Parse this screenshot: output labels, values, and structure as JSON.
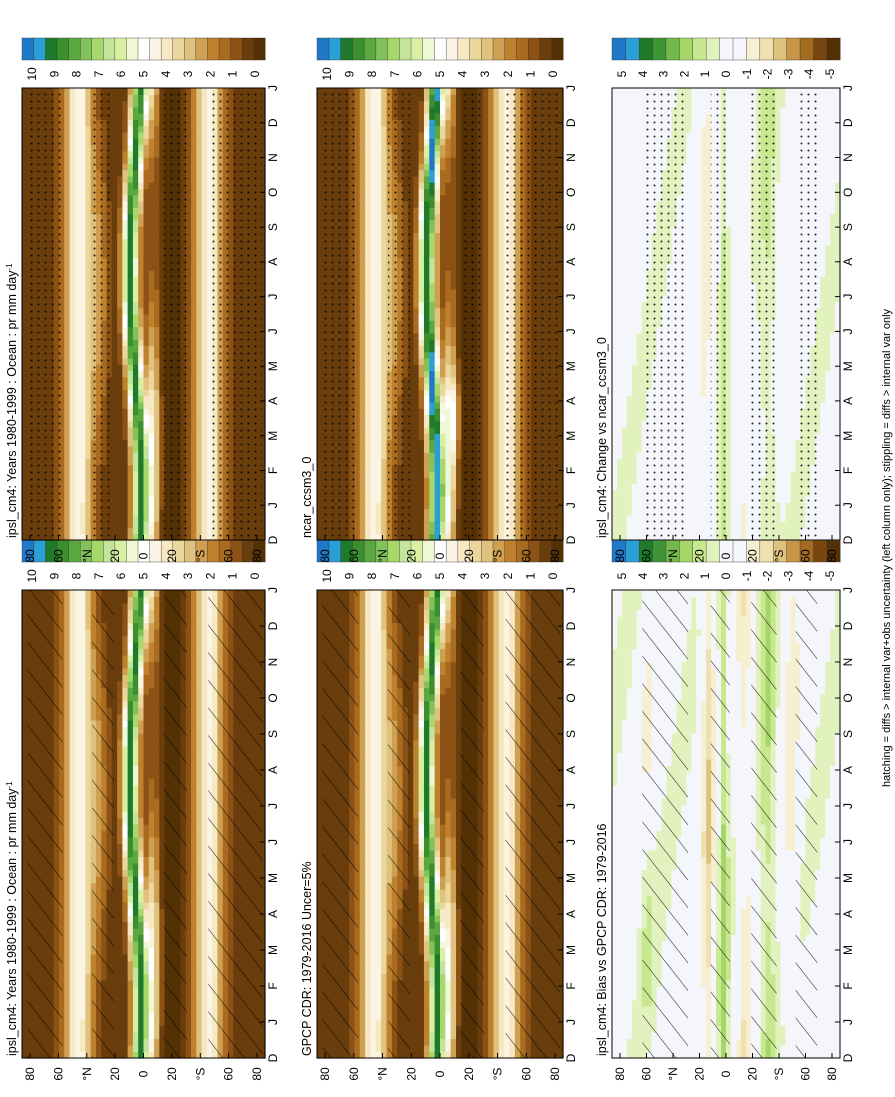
{
  "caption": "hatching = diffs > internal var+obs uncertainty (left column only); stippling = diffs > internal var only",
  "chart_data": [
    {
      "id": "model-left",
      "type": "heatmap",
      "title": "ipsl_cm4: Years 1980-1999 : Ocean : pr mm day",
      "title_superscript": "-1",
      "x_ticks": [
        "D",
        "J",
        "F",
        "M",
        "A",
        "M",
        "J",
        "J",
        "A",
        "S",
        "O",
        "N",
        "D",
        "J"
      ],
      "y_ticks": [
        "80",
        "60",
        "°N",
        "20",
        "0",
        "20",
        "°S",
        "60",
        "80"
      ],
      "colorbar_labels": [
        "10",
        "9",
        "8",
        "7",
        "6",
        "5",
        "4",
        "3",
        "2",
        "1",
        "0"
      ],
      "overlay": "hatching",
      "field": "climatology"
    },
    {
      "id": "model-right",
      "type": "heatmap",
      "title": "ipsl_cm4: Years 1980-1999 : Ocean : pr mm day",
      "title_superscript": "-1",
      "x_ticks": [
        "D",
        "J",
        "F",
        "M",
        "A",
        "M",
        "J",
        "J",
        "A",
        "S",
        "O",
        "N",
        "D",
        "J"
      ],
      "y_ticks": [
        "80",
        "60",
        "°N",
        "20",
        "0",
        "20",
        "°S",
        "60",
        "80"
      ],
      "colorbar_labels": [
        "10",
        "9",
        "8",
        "7",
        "6",
        "5",
        "4",
        "3",
        "2",
        "1",
        "0"
      ],
      "overlay": "stippling",
      "field": "climatology"
    },
    {
      "id": "obs-left",
      "type": "heatmap",
      "title": "GPCP CDR: 1979-2016 Uncer=5%",
      "title_superscript": "",
      "x_ticks": [
        "D",
        "J",
        "F",
        "M",
        "A",
        "M",
        "J",
        "J",
        "A",
        "S",
        "O",
        "N",
        "D",
        "J"
      ],
      "y_ticks": [
        "80",
        "60",
        "°N",
        "20",
        "0",
        "20",
        "°S",
        "60",
        "80"
      ],
      "colorbar_labels": [
        "10",
        "9",
        "8",
        "7",
        "6",
        "5",
        "4",
        "3",
        "2",
        "1",
        "0"
      ],
      "overlay": "hatching",
      "field": "climatology"
    },
    {
      "id": "obs-right",
      "type": "heatmap",
      "title": "ncar_ccsm3_0",
      "title_superscript": "",
      "x_ticks": [
        "D",
        "J",
        "F",
        "M",
        "A",
        "M",
        "J",
        "J",
        "A",
        "S",
        "O",
        "N",
        "D",
        "J"
      ],
      "y_ticks": [
        "80",
        "60",
        "°N",
        "20",
        "0",
        "20",
        "°S",
        "60",
        "80"
      ],
      "colorbar_labels": [
        "10",
        "9",
        "8",
        "7",
        "6",
        "5",
        "4",
        "3",
        "2",
        "1",
        "0"
      ],
      "overlay": "stippling",
      "field": "climatology_alt"
    },
    {
      "id": "diff-left",
      "type": "heatmap",
      "title": "ipsl_cm4: Bias vs GPCP CDR: 1979-2016",
      "title_superscript": "",
      "x_ticks": [
        "D",
        "J",
        "F",
        "M",
        "A",
        "M",
        "J",
        "J",
        "A",
        "S",
        "O",
        "N",
        "D",
        "J"
      ],
      "y_ticks": [
        "80",
        "60",
        "°N",
        "20",
        "0",
        "20",
        "°S",
        "60",
        "80"
      ],
      "colorbar_labels": [
        "5",
        "4",
        "3",
        "2",
        "1",
        "0",
        "-1",
        "-2",
        "-3",
        "-4",
        "-5"
      ],
      "overlay": "hatching",
      "field": "bias"
    },
    {
      "id": "diff-right",
      "type": "heatmap",
      "title": "ipsl_cm4: Change vs ncar_ccsm3_0",
      "title_superscript": "",
      "x_ticks": [
        "D",
        "J",
        "F",
        "M",
        "A",
        "M",
        "J",
        "J",
        "A",
        "S",
        "O",
        "N",
        "D",
        "J"
      ],
      "y_ticks": [
        "80",
        "60",
        "°N",
        "20",
        "0",
        "20",
        "°S",
        "60",
        "80"
      ],
      "colorbar_labels": [
        "5",
        "4",
        "3",
        "2",
        "1",
        "0",
        "-1",
        "-2",
        "-3",
        "-4",
        "-5"
      ],
      "overlay": "stippling",
      "field": "change"
    }
  ],
  "colors": {
    "climatology": [
      "#543005",
      "#6a3d0c",
      "#8c5114",
      "#a86b20",
      "#bf812d",
      "#d0a052",
      "#dfc27d",
      "#ebd69c",
      "#f6e8c3",
      "#fbf4e3",
      "#ffffff",
      "#eef7d6",
      "#d9f0a3",
      "#c2e59b",
      "#a6d96a",
      "#82c25a",
      "#5aa83f",
      "#3b8f2f",
      "#1f7a2b",
      "#2a9fd6",
      "#1f78c8"
    ],
    "diff": [
      "#543005",
      "#7a4610",
      "#a46a20",
      "#c89446",
      "#dfc27d",
      "#f0e0b0",
      "#f6efd2",
      "#f5f6fb",
      "#f5f6fb",
      "#e2f2bf",
      "#c8e88f",
      "#a4d668",
      "#73b84c",
      "#3f9436",
      "#1f7a2b",
      "#2a9fd6",
      "#1f78c8"
    ]
  }
}
